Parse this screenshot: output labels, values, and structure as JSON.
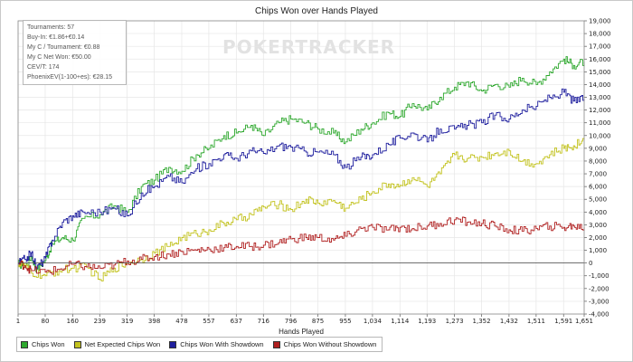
{
  "chart_data": {
    "type": "line",
    "title": "Chips Won over Hands Played",
    "xlabel": "Hands Played",
    "ylabel": "",
    "xlim": [
      1,
      1651
    ],
    "ylim": [
      -4000,
      19000
    ],
    "x_ticks": [
      "1",
      "80",
      "160",
      "239",
      "319",
      "398",
      "478",
      "557",
      "637",
      "716",
      "796",
      "875",
      "955",
      "1,034",
      "1,114",
      "1,193",
      "1,273",
      "1,352",
      "1,432",
      "1,511",
      "1,591",
      "1,651"
    ],
    "y_ticks": [
      "-4,000",
      "-3,000",
      "-2,000",
      "-1,000",
      "0",
      "1,000",
      "2,000",
      "3,000",
      "4,000",
      "5,000",
      "6,000",
      "7,000",
      "8,000",
      "9,000",
      "10,000",
      "11,000",
      "12,000",
      "13,000",
      "14,000",
      "15,000",
      "16,000",
      "17,000",
      "18,000",
      "19,000"
    ],
    "grid": true,
    "legend_position": "bottom-left",
    "series": [
      {
        "name": "Chips Won",
        "color": "#2ea82e",
        "x": [
          1,
          20,
          40,
          55,
          80,
          100,
          130,
          160,
          190,
          239,
          280,
          319,
          360,
          398,
          440,
          478,
          520,
          557,
          600,
          637,
          680,
          716,
          760,
          796,
          840,
          875,
          920,
          955,
          1000,
          1034,
          1080,
          1114,
          1150,
          1193,
          1230,
          1273,
          1310,
          1352,
          1390,
          1432,
          1470,
          1511,
          1550,
          1591,
          1620,
          1651
        ],
        "y": [
          0,
          -300,
          500,
          -500,
          200,
          1500,
          2000,
          1800,
          3500,
          3800,
          4500,
          4000,
          6000,
          6500,
          7500,
          7200,
          8500,
          9000,
          10000,
          10200,
          10800,
          10000,
          11000,
          11300,
          11000,
          10500,
          10200,
          9500,
          10500,
          11000,
          11800,
          11500,
          12500,
          12000,
          13000,
          13800,
          14200,
          13500,
          14000,
          13800,
          14500,
          14000,
          15000,
          16000,
          15500,
          15800
        ]
      },
      {
        "name": "Net Expected Chips Won",
        "color": "#c2c21e",
        "x": [
          1,
          20,
          40,
          80,
          120,
          160,
          200,
          239,
          280,
          319,
          360,
          398,
          440,
          478,
          520,
          557,
          600,
          637,
          680,
          716,
          760,
          796,
          840,
          875,
          920,
          955,
          1000,
          1034,
          1080,
          1114,
          1150,
          1193,
          1230,
          1273,
          1310,
          1352,
          1390,
          1432,
          1470,
          1511,
          1550,
          1591,
          1620,
          1651
        ],
        "y": [
          0,
          -200,
          -800,
          -1000,
          -600,
          -400,
          -300,
          -1300,
          -400,
          0,
          300,
          800,
          1300,
          2000,
          2300,
          2600,
          3100,
          3400,
          3800,
          4400,
          4600,
          4200,
          5000,
          4700,
          4900,
          4300,
          5000,
          5600,
          6200,
          6100,
          6700,
          6000,
          7000,
          8500,
          8200,
          8300,
          8600,
          8800,
          8000,
          7800,
          8500,
          9000,
          9200,
          9700
        ]
      },
      {
        "name": "Chips Won With Showdown",
        "color": "#1f1f9e",
        "x": [
          1,
          20,
          40,
          55,
          80,
          100,
          130,
          160,
          190,
          239,
          280,
          319,
          360,
          398,
          440,
          478,
          520,
          557,
          600,
          637,
          680,
          716,
          760,
          796,
          840,
          875,
          920,
          955,
          1000,
          1034,
          1080,
          1114,
          1150,
          1193,
          1230,
          1273,
          1310,
          1352,
          1390,
          1432,
          1470,
          1511,
          1550,
          1591,
          1620,
          1651
        ],
        "y": [
          0,
          300,
          800,
          -400,
          400,
          1800,
          3200,
          3700,
          4000,
          4000,
          4300,
          3700,
          5500,
          6000,
          6800,
          6300,
          7400,
          7800,
          8500,
          8200,
          8800,
          8600,
          9200,
          9100,
          8700,
          8700,
          8500,
          7500,
          8300,
          8500,
          9300,
          9800,
          10200,
          9500,
          10500,
          10500,
          10800,
          11000,
          11600,
          11300,
          12000,
          12300,
          13000,
          13400,
          12700,
          12900
        ]
      },
      {
        "name": "Chips Won Without Showdown",
        "color": "#b02020",
        "x": [
          1,
          20,
          40,
          80,
          120,
          160,
          200,
          239,
          280,
          319,
          360,
          398,
          440,
          478,
          520,
          557,
          600,
          637,
          680,
          716,
          760,
          796,
          840,
          875,
          920,
          955,
          1000,
          1034,
          1080,
          1114,
          1150,
          1193,
          1230,
          1273,
          1310,
          1352,
          1390,
          1432,
          1470,
          1511,
          1550,
          1591,
          1620,
          1651
        ],
        "y": [
          0,
          -200,
          -600,
          -700,
          -500,
          -100,
          -300,
          -400,
          -150,
          150,
          300,
          500,
          700,
          900,
          1000,
          1100,
          1200,
          1300,
          1300,
          1400,
          1600,
          1900,
          2000,
          2000,
          1800,
          2100,
          2700,
          2800,
          2600,
          2800,
          2700,
          2900,
          3100,
          3400,
          3200,
          3100,
          2900,
          2600,
          2500,
          2700,
          2900,
          2800,
          2900,
          2800
        ]
      }
    ]
  },
  "stats": [
    "Tournaments: 57",
    "Buy-In: €1.86+€0.14",
    "My C / Tournament: €0.88",
    "My C Net Won: €50.00",
    "CEV/T: 174",
    "PhoenixEV(1-100+es): €28.15"
  ],
  "watermark": "POKERTRACKER"
}
